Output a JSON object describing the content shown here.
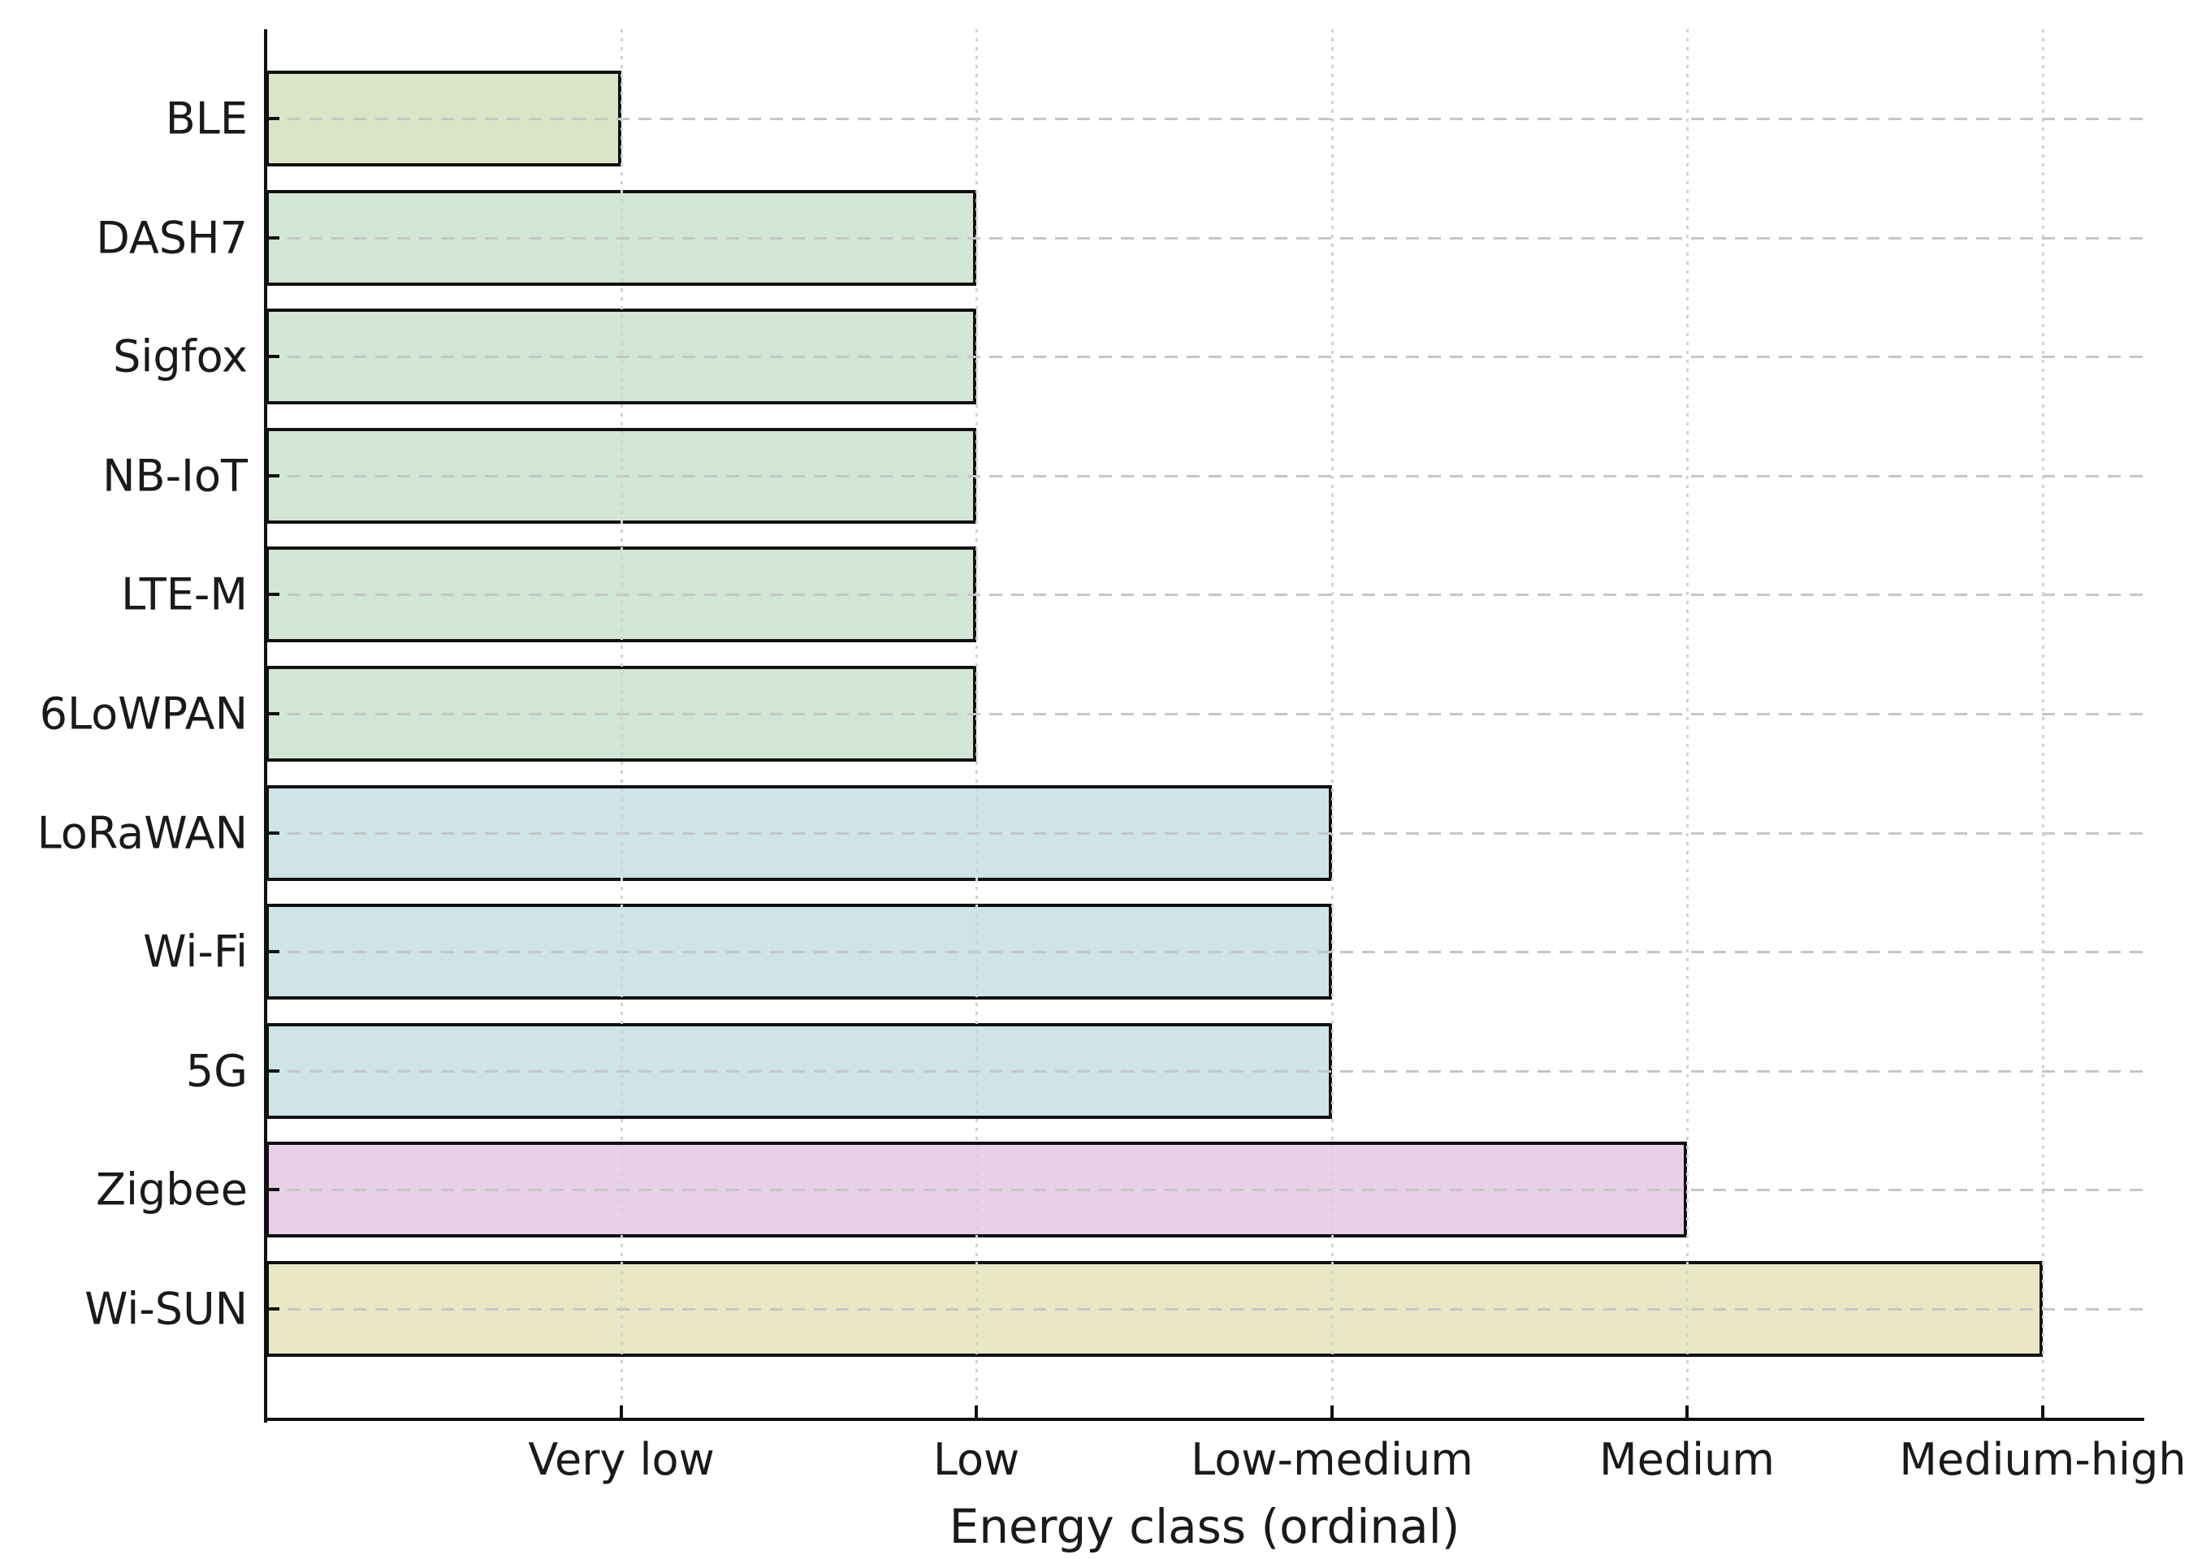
{
  "chart_data": {
    "type": "bar",
    "orientation": "horizontal",
    "title": "",
    "xlabel": "Energy class (ordinal)",
    "ylabel": "",
    "categories": [
      "BLE",
      "DASH7",
      "Sigfox",
      "NB-IoT",
      "LTE-M",
      "6LoWPAN",
      "LoRaWAN",
      "Wi-Fi",
      "5G",
      "Zigbee",
      "Wi-SUN"
    ],
    "values": [
      1,
      2,
      2,
      2,
      2,
      2,
      3,
      3,
      3,
      4,
      5
    ],
    "value_class_labels": [
      "Very low",
      "Low",
      "Low",
      "Low",
      "Low",
      "Low",
      "Low-medium",
      "Low-medium",
      "Low-medium",
      "Medium",
      "Medium-high"
    ],
    "x_tick_values": [
      1,
      2,
      3,
      4,
      5
    ],
    "x_tick_labels": [
      "Very low",
      "Low",
      "Low-medium",
      "Medium",
      "Medium-high"
    ],
    "xlim": [
      0,
      5.29
    ],
    "grid": {
      "horizontal": "dashed",
      "vertical": "dotted",
      "on_top_of_bars": true
    },
    "legend": "none",
    "bar_colors": [
      "#d9e5c6",
      "#d1e6d4",
      "#d1e6d4",
      "#d1e6d4",
      "#d1e6d4",
      "#d1e6d4",
      "#cee4e7",
      "#cee4e7",
      "#cee4e7",
      "#e8d0e8",
      "#e9e7c4"
    ],
    "bar_edge_color": "#111111",
    "axis_color": "#111111",
    "grid_color_horizontal": "#c6c6c6",
    "grid_color_vertical": "#d2d2d2",
    "background_color": "#ffffff"
  }
}
